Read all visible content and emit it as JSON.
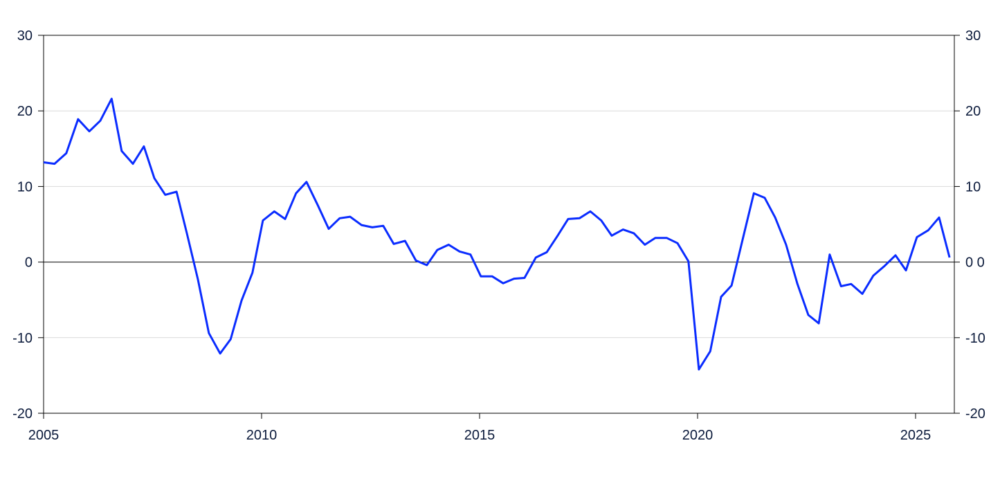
{
  "chart_data": {
    "type": "line",
    "title": "",
    "xlabel": "",
    "ylabel": "",
    "xlim": [
      2005,
      2025.9
    ],
    "ylim": [
      -20,
      30
    ],
    "x_ticks": [
      "2005",
      "2010",
      "2015",
      "2020",
      "2025"
    ],
    "x_tick_values": [
      2005,
      2010,
      2015,
      2020,
      2025
    ],
    "y_ticks_left": [
      "30",
      "20",
      "10",
      "0",
      "-10",
      "-20"
    ],
    "y_ticks_right": [
      "30",
      "20",
      "10",
      "0 0",
      "-10",
      "-20"
    ],
    "y_tick_values": [
      30,
      20,
      10,
      0,
      -10,
      -20
    ],
    "grid": "horizontal",
    "zero_line": true,
    "legend": "none",
    "colors": {
      "line": "#0a2cff",
      "grid": "#d9d9d9",
      "axis": "#000000"
    },
    "series": [
      {
        "x": [
          2005.0,
          2005.25,
          2005.52,
          2005.79,
          2006.05,
          2006.3,
          2006.56,
          2006.79,
          2007.05,
          2007.3,
          2007.54,
          2007.79,
          2008.05,
          2008.29,
          2008.54,
          2008.79,
          2009.05,
          2009.29,
          2009.54,
          2009.79,
          2010.03,
          2010.29,
          2010.54,
          2010.79,
          2011.03,
          2011.29,
          2011.54,
          2011.79,
          2012.03,
          2012.29,
          2012.54,
          2012.79,
          2013.03,
          2013.29,
          2013.54,
          2013.79,
          2014.03,
          2014.29,
          2014.54,
          2014.79,
          2015.03,
          2015.29,
          2015.54,
          2015.79,
          2016.03,
          2016.29,
          2016.54,
          2016.79,
          2017.03,
          2017.29,
          2017.54,
          2017.79,
          2018.03,
          2018.29,
          2018.54,
          2018.79,
          2019.03,
          2019.29,
          2019.54,
          2019.79,
          2020.03,
          2020.29,
          2020.54,
          2020.78,
          2021.03,
          2021.29,
          2021.54,
          2021.78,
          2022.03,
          2022.29,
          2022.54,
          2022.78,
          2023.03,
          2023.29,
          2023.52,
          2023.78,
          2024.03,
          2024.29,
          2024.54,
          2024.78,
          2025.03,
          2025.29,
          2025.54,
          2025.78
        ],
        "y": [
          13.2,
          13.0,
          14.4,
          18.9,
          17.3,
          18.7,
          21.6,
          14.7,
          13.0,
          15.3,
          11.1,
          8.9,
          9.3,
          3.7,
          -2.3,
          -9.4,
          -12.1,
          -10.2,
          -5.1,
          -1.4,
          5.5,
          6.7,
          5.7,
          9.1,
          10.6,
          7.5,
          4.4,
          5.8,
          6.0,
          4.9,
          4.6,
          4.8,
          2.4,
          2.8,
          0.2,
          -0.4,
          1.6,
          2.3,
          1.4,
          1.0,
          -1.9,
          -1.9,
          -2.8,
          -2.2,
          -2.1,
          0.6,
          1.3,
          3.5,
          5.7,
          5.8,
          6.7,
          5.5,
          3.5,
          4.3,
          3.8,
          2.3,
          3.2,
          3.2,
          2.5,
          0.1,
          -14.2,
          -11.8,
          -4.6,
          -3.1,
          2.9,
          9.1,
          8.5,
          5.9,
          2.3,
          -2.9,
          -7.0,
          -8.1,
          1.0,
          -3.2,
          -2.9,
          -4.2,
          -1.8,
          -0.5,
          0.9,
          -1.1,
          3.3,
          4.2,
          5.9,
          0.6
        ]
      }
    ]
  }
}
